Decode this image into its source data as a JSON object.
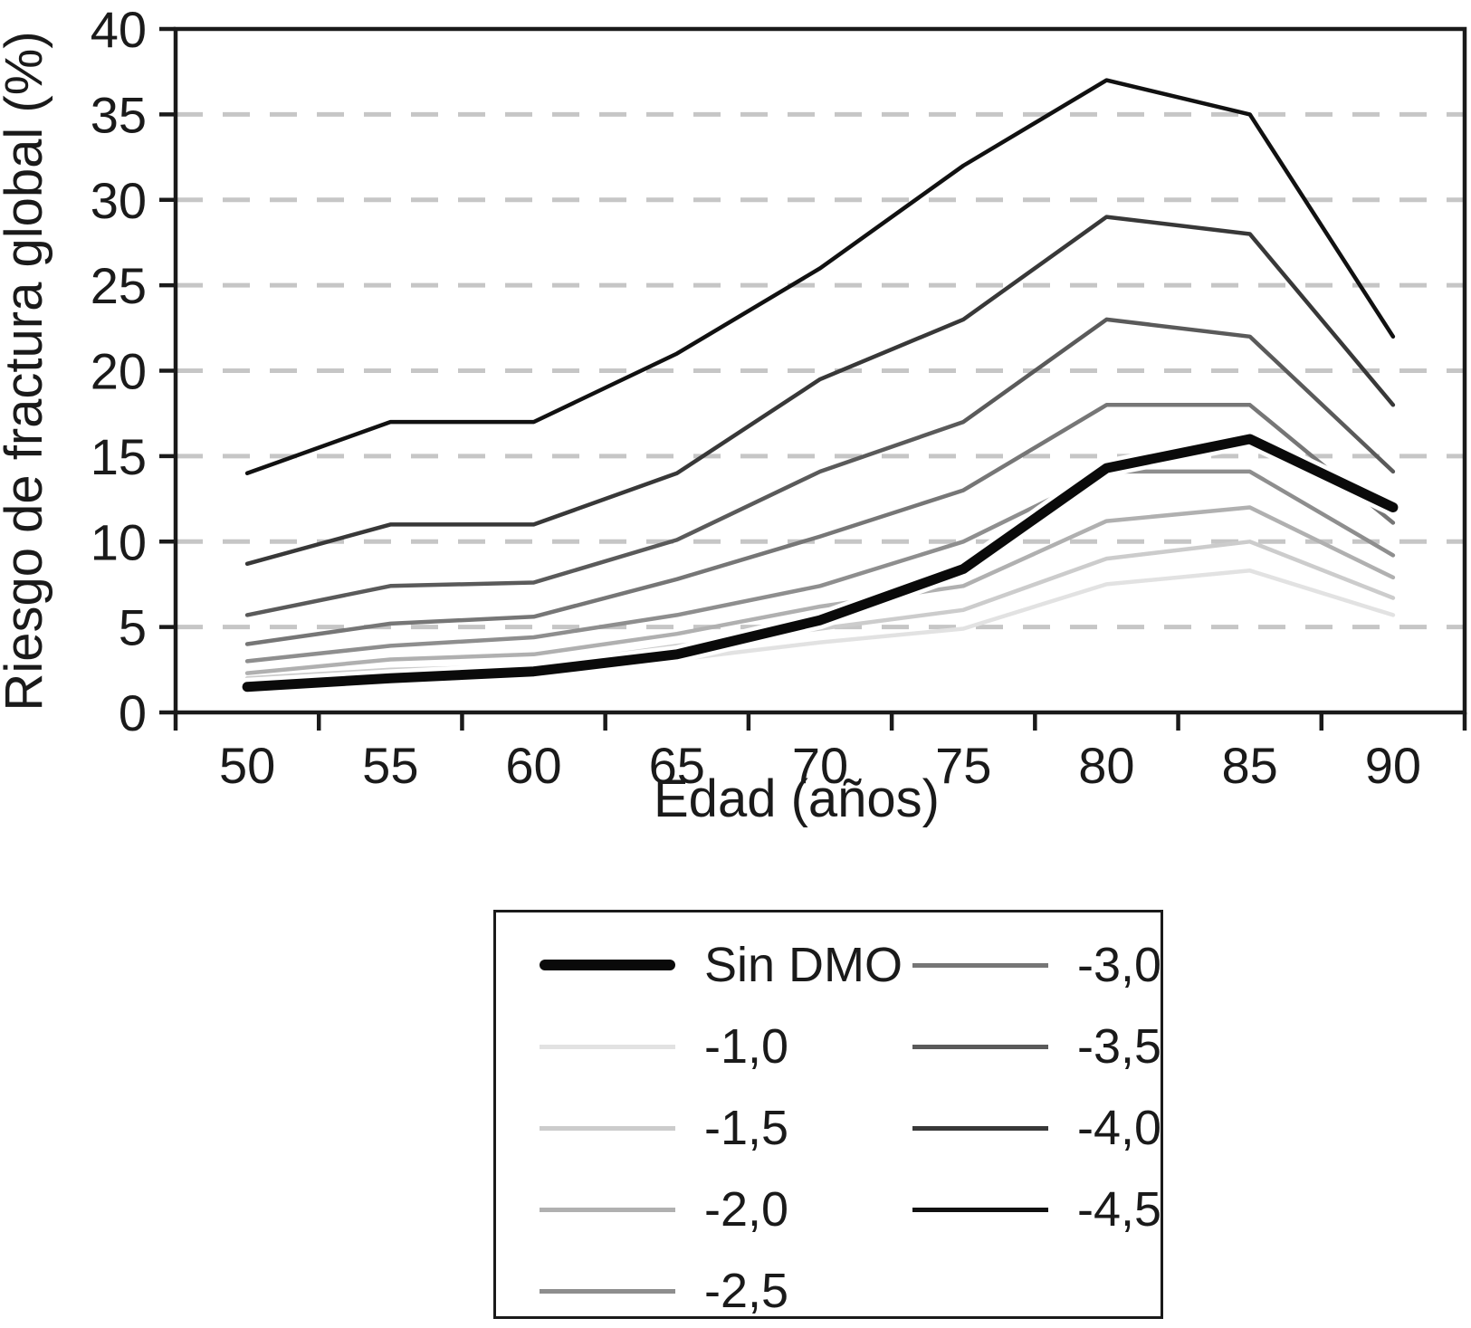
{
  "figure": {
    "y_axis_title": "Riesgo de fractura global (%)",
    "x_axis_title": "Edad (años)"
  },
  "chart_data": {
    "type": "line",
    "title": "",
    "xlabel": "Edad (años)",
    "ylabel": "Riesgo de fractura global (%)",
    "categories": [
      50,
      55,
      60,
      65,
      70,
      75,
      80,
      85,
      90
    ],
    "ylim": [
      0,
      40
    ],
    "ytick_step": 5,
    "grid": "horizontal-dashed",
    "grid_color": "#c6c6c6",
    "axis_color": "#1a1a1a",
    "legend_position": "below-chart-boxed",
    "series": [
      {
        "name": "Sin DMO",
        "color": "#0a0a0a",
        "stroke_width": 11,
        "halo": true,
        "values": [
          1.5,
          2.0,
          2.4,
          3.4,
          5.4,
          8.4,
          14.3,
          16.0,
          12.0
        ]
      },
      {
        "name": "-1,0",
        "color": "#e2e2e2",
        "stroke_width": 4.5,
        "halo": false,
        "values": [
          1.8,
          2.3,
          2.4,
          3.1,
          4.1,
          4.9,
          7.5,
          8.3,
          5.7
        ]
      },
      {
        "name": "-1,5",
        "color": "#cccccc",
        "stroke_width": 4.5,
        "halo": false,
        "values": [
          2.0,
          2.5,
          2.7,
          3.9,
          4.9,
          6.0,
          9.0,
          10.0,
          6.7
        ]
      },
      {
        "name": "-2,0",
        "color": "#b0b0b0",
        "stroke_width": 4.5,
        "halo": false,
        "values": [
          2.3,
          3.1,
          3.4,
          4.6,
          6.2,
          7.4,
          11.2,
          12.0,
          7.9
        ]
      },
      {
        "name": "-2,5",
        "color": "#8e8e8e",
        "stroke_width": 4.5,
        "halo": false,
        "values": [
          3.0,
          3.9,
          4.4,
          5.7,
          7.4,
          10.0,
          14.1,
          14.1,
          9.2
        ]
      },
      {
        "name": "-3,0",
        "color": "#767676",
        "stroke_width": 4.5,
        "halo": false,
        "values": [
          4.0,
          5.2,
          5.6,
          7.8,
          10.3,
          13.0,
          18.0,
          18.0,
          11.1
        ]
      },
      {
        "name": "-3,5",
        "color": "#5a5a5a",
        "stroke_width": 4.5,
        "halo": false,
        "values": [
          5.7,
          7.4,
          7.6,
          10.1,
          14.1,
          17.0,
          23.0,
          22.0,
          14.1
        ]
      },
      {
        "name": "-4,0",
        "color": "#383838",
        "stroke_width": 4.5,
        "halo": false,
        "values": [
          8.7,
          11.0,
          11.0,
          14.0,
          19.5,
          23.0,
          29.0,
          28.0,
          18.0
        ]
      },
      {
        "name": "-4,5",
        "color": "#111111",
        "stroke_width": 4.5,
        "halo": false,
        "values": [
          14.0,
          17.0,
          17.0,
          21.0,
          26.0,
          32.0,
          37.0,
          35.0,
          22.0
        ]
      }
    ],
    "draw_order": [
      1,
      2,
      3,
      4,
      5,
      6,
      7,
      8,
      0
    ]
  }
}
